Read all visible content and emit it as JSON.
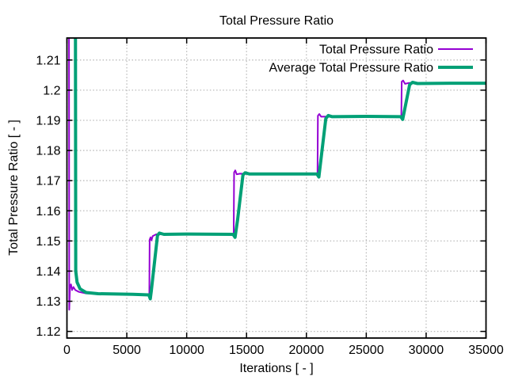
{
  "chart_data": {
    "type": "line",
    "title": "Total Pressure Ratio",
    "xlabel": "Iterations [ - ]",
    "ylabel": "Total Pressure Ratio [ - ]",
    "xlim": [
      0,
      35000
    ],
    "ylim": [
      1.1178,
      1.2173
    ],
    "grid": true,
    "legend_position": "top-right-inside",
    "xticks": [
      0,
      5000,
      10000,
      15000,
      20000,
      25000,
      30000,
      35000
    ],
    "xtick_labels": [
      "0",
      "5000",
      "10000",
      "15000",
      "20000",
      "25000",
      "30000",
      "35000"
    ],
    "yticks": [
      1.12,
      1.13,
      1.14,
      1.15,
      1.16,
      1.17,
      1.18,
      1.19,
      1.2,
      1.21
    ],
    "ytick_labels": [
      "1.12",
      "1.13",
      "1.14",
      "1.15",
      "1.16",
      "1.17",
      "1.18",
      "1.19",
      "1.2",
      "1.21"
    ],
    "colors": {
      "axis": "#000000",
      "grid": "#bbbbbb",
      "background": "#ffffff",
      "series1": "#9400d3",
      "series2": "#00a076"
    },
    "plateau_values": [
      1.1323,
      1.1523,
      1.1722,
      1.1913,
      1.2023
    ],
    "step_iterations": [
      6900,
      14000,
      21000,
      28000
    ],
    "series": [
      {
        "name": "Total Pressure Ratio",
        "color": "#9400d3",
        "width": 2,
        "points": [
          [
            0,
            1.3
          ],
          [
            150,
            1.3
          ],
          [
            190,
            1.1272
          ],
          [
            260,
            1.135
          ],
          [
            340,
            1.1356
          ],
          [
            430,
            1.1337
          ],
          [
            540,
            1.1347
          ],
          [
            700,
            1.1337
          ],
          [
            1000,
            1.1331
          ],
          [
            1600,
            1.1326
          ],
          [
            3500,
            1.1324
          ],
          [
            6880,
            1.1323
          ],
          [
            6910,
            1.1504
          ],
          [
            6990,
            1.1512
          ],
          [
            7060,
            1.1502
          ],
          [
            7160,
            1.1516
          ],
          [
            7450,
            1.1522
          ],
          [
            9000,
            1.1523
          ],
          [
            13930,
            1.1523
          ],
          [
            13960,
            1.1727
          ],
          [
            14060,
            1.1734
          ],
          [
            14180,
            1.1721
          ],
          [
            14450,
            1.1723
          ],
          [
            16000,
            1.1722
          ],
          [
            20930,
            1.1722
          ],
          [
            20960,
            1.1915
          ],
          [
            21080,
            1.1921
          ],
          [
            21230,
            1.1912
          ],
          [
            23000,
            1.1913
          ],
          [
            27930,
            1.1913
          ],
          [
            27960,
            1.2028
          ],
          [
            28080,
            1.2032
          ],
          [
            28240,
            1.2021
          ],
          [
            28550,
            1.2024
          ],
          [
            35000,
            1.2024
          ]
        ]
      },
      {
        "name": "Average Total Pressure Ratio",
        "color": "#00a076",
        "width": 4,
        "points": [
          [
            480,
            1.3
          ],
          [
            690,
            1.3
          ],
          [
            735,
            1.14
          ],
          [
            850,
            1.1363
          ],
          [
            1100,
            1.1341
          ],
          [
            1600,
            1.1329
          ],
          [
            2600,
            1.1325
          ],
          [
            5500,
            1.1323
          ],
          [
            6840,
            1.1321
          ],
          [
            6960,
            1.1308
          ],
          [
            7040,
            1.1332
          ],
          [
            7560,
            1.1518
          ],
          [
            7720,
            1.1526
          ],
          [
            8100,
            1.1522
          ],
          [
            10000,
            1.1523
          ],
          [
            13880,
            1.1522
          ],
          [
            14040,
            1.1512
          ],
          [
            14250,
            1.157
          ],
          [
            14700,
            1.1719
          ],
          [
            14880,
            1.1726
          ],
          [
            15260,
            1.1722
          ],
          [
            18000,
            1.1722
          ],
          [
            20880,
            1.1722
          ],
          [
            21040,
            1.1712
          ],
          [
            21620,
            1.1906
          ],
          [
            21830,
            1.1916
          ],
          [
            22160,
            1.1912
          ],
          [
            25000,
            1.1913
          ],
          [
            27880,
            1.1912
          ],
          [
            28040,
            1.1903
          ],
          [
            28620,
            1.2018
          ],
          [
            28860,
            1.2026
          ],
          [
            29280,
            1.2022
          ],
          [
            32000,
            1.2023
          ],
          [
            35000,
            1.2023
          ]
        ]
      }
    ]
  }
}
